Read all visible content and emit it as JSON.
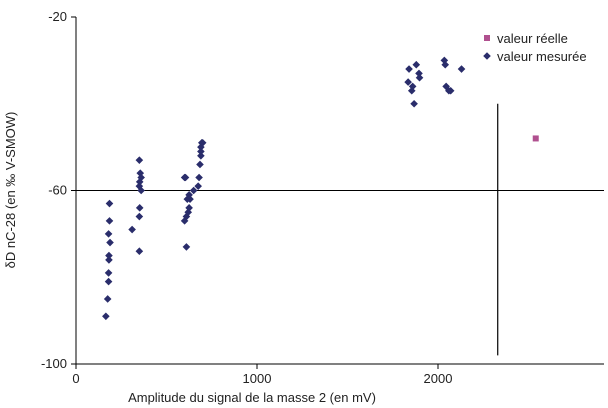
{
  "chart_data": {
    "type": "scatter",
    "title": "",
    "xlabel": "Amplitude du signal de la masse 2 (en mV)",
    "ylabel": "δD nC-28 (en ‰ V-SMOW)",
    "xlim": [
      0,
      3000
    ],
    "ylim": [
      -100,
      -20
    ],
    "xticks": [
      0,
      1000,
      2000
    ],
    "yticks": [
      -20,
      -60,
      -100
    ],
    "grid": false,
    "legend_position": "top-right",
    "reference_lines": [
      {
        "orientation": "horizontal",
        "y": -60
      },
      {
        "orientation": "vertical",
        "x": 2330
      }
    ],
    "series": [
      {
        "name": "valeur réelle",
        "marker": "square",
        "color": "#b0508f",
        "points": [
          [
            2540,
            -48
          ]
        ]
      },
      {
        "name": "valeur mesurée",
        "marker": "diamond",
        "color": "#2a2d6b",
        "points": [
          [
            165,
            -89
          ],
          [
            175,
            -85
          ],
          [
            180,
            -81
          ],
          [
            180,
            -79
          ],
          [
            182,
            -76
          ],
          [
            182,
            -75
          ],
          [
            188,
            -72
          ],
          [
            180,
            -70
          ],
          [
            185,
            -67
          ],
          [
            185,
            -63
          ],
          [
            310,
            -69
          ],
          [
            350,
            -74
          ],
          [
            350,
            -66
          ],
          [
            352,
            -64
          ],
          [
            350,
            -59
          ],
          [
            352,
            -58
          ],
          [
            360,
            -60
          ],
          [
            355,
            -56
          ],
          [
            350,
            -53
          ],
          [
            360,
            -57
          ],
          [
            610,
            -73
          ],
          [
            600,
            -67
          ],
          [
            610,
            -66
          ],
          [
            620,
            -65
          ],
          [
            625,
            -64
          ],
          [
            615,
            -62
          ],
          [
            625,
            -61
          ],
          [
            630,
            -62
          ],
          [
            600,
            -57
          ],
          [
            605,
            -57
          ],
          [
            650,
            -60
          ],
          [
            675,
            -59
          ],
          [
            680,
            -57
          ],
          [
            685,
            -54
          ],
          [
            690,
            -52
          ],
          [
            690,
            -51
          ],
          [
            690,
            -50
          ],
          [
            695,
            -49
          ],
          [
            700,
            -49
          ],
          [
            1835,
            -35
          ],
          [
            1840,
            -32
          ],
          [
            1855,
            -37
          ],
          [
            1860,
            -36
          ],
          [
            1868,
            -40
          ],
          [
            1880,
            -31
          ],
          [
            1895,
            -33
          ],
          [
            1898,
            -34
          ],
          [
            2035,
            -30
          ],
          [
            2040,
            -31
          ],
          [
            2045,
            -36
          ],
          [
            2060,
            -37
          ],
          [
            2070,
            -37
          ],
          [
            2130,
            -32
          ]
        ]
      }
    ]
  }
}
